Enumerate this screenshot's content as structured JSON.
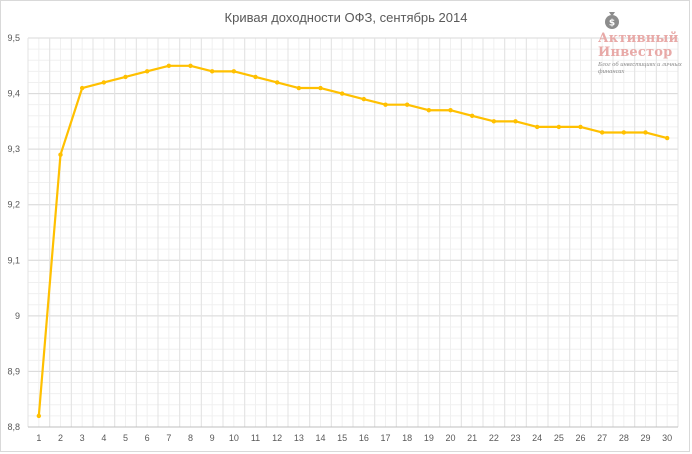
{
  "chart_data": {
    "type": "line",
    "title": "Кривая доходности ОФЗ, сентябрь 2014",
    "xlabel": "",
    "ylabel": "",
    "ylim": [
      8.8,
      9.5
    ],
    "y_ticks": [
      "8,8",
      "8,9",
      "9",
      "9,1",
      "9,2",
      "9,3",
      "9,4",
      "9,5"
    ],
    "y_tick_values": [
      8.8,
      8.9,
      9.0,
      9.1,
      9.2,
      9.3,
      9.4,
      9.5
    ],
    "x": [
      1,
      2,
      3,
      4,
      5,
      6,
      7,
      8,
      9,
      10,
      11,
      12,
      13,
      14,
      15,
      16,
      17,
      18,
      19,
      20,
      21,
      22,
      23,
      24,
      25,
      26,
      27,
      28,
      29,
      30
    ],
    "x_ticks": [
      "1",
      "2",
      "3",
      "4",
      "5",
      "6",
      "7",
      "8",
      "9",
      "10",
      "11",
      "12",
      "13",
      "14",
      "15",
      "16",
      "17",
      "18",
      "19",
      "20",
      "21",
      "22",
      "23",
      "24",
      "25",
      "26",
      "27",
      "28",
      "29",
      "30"
    ],
    "series": [
      {
        "values": [
          8.82,
          9.29,
          9.41,
          9.42,
          9.43,
          9.44,
          9.45,
          9.45,
          9.44,
          9.44,
          9.43,
          9.42,
          9.41,
          9.41,
          9.4,
          9.39,
          9.38,
          9.38,
          9.37,
          9.37,
          9.36,
          9.35,
          9.35,
          9.34,
          9.34,
          9.34,
          9.33,
          9.33,
          9.33,
          9.32
        ],
        "color": "#ffc000"
      }
    ],
    "grid": true,
    "legend": "none"
  },
  "watermark": {
    "line1": "Активный",
    "line2": "Инвестор",
    "tagline": "Блог об инвестициях и личных финансах"
  }
}
